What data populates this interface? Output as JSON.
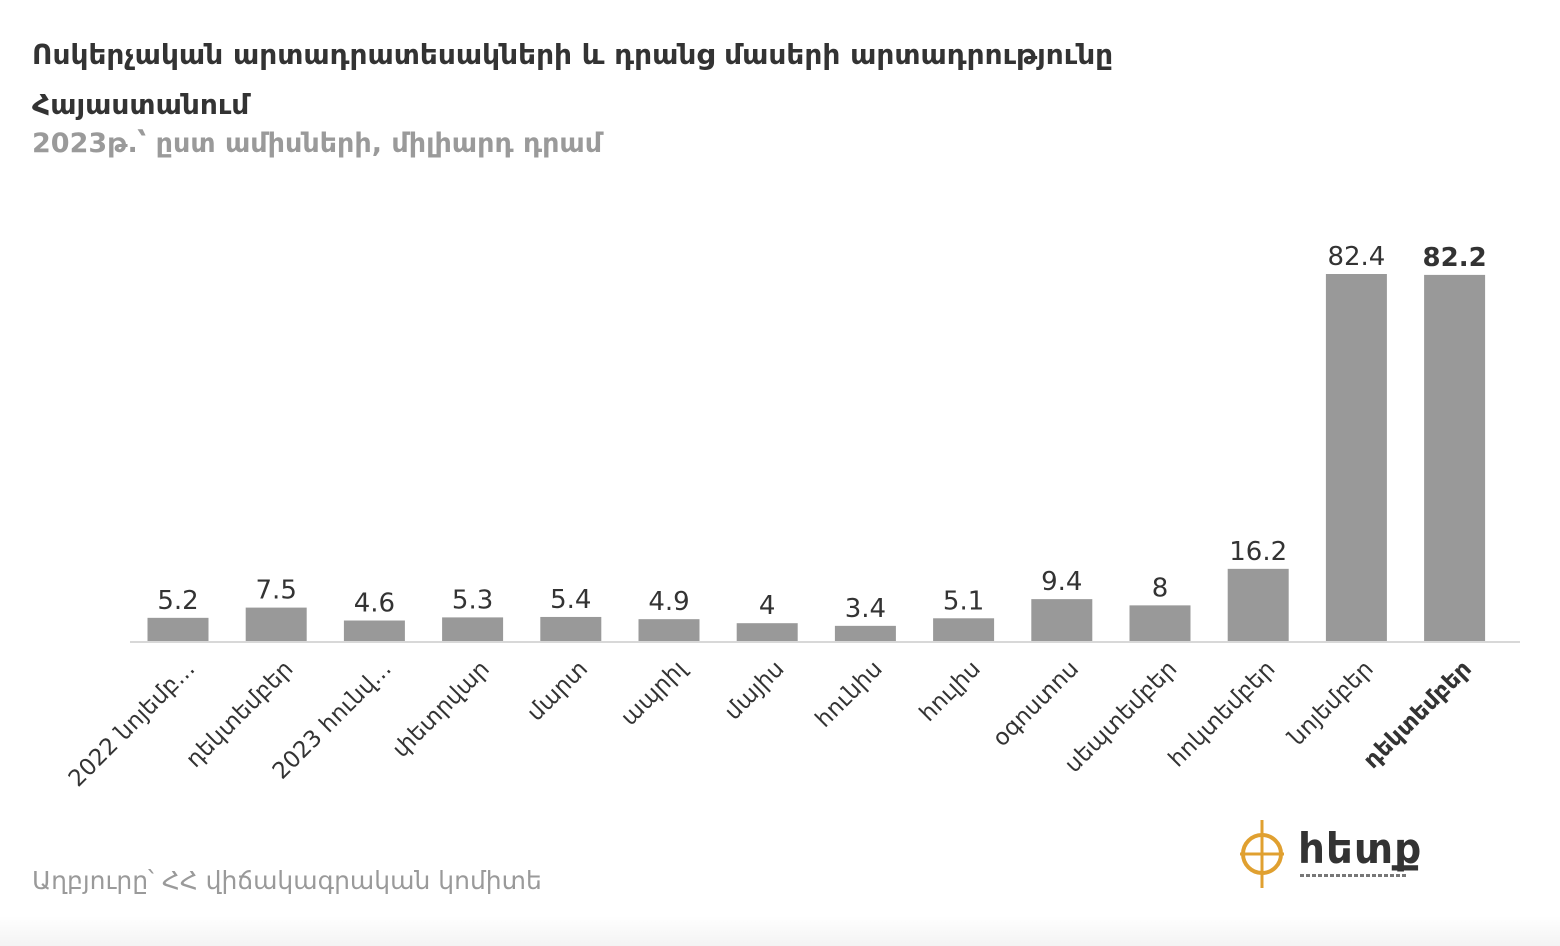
{
  "title": "Ոսկերչական արտադրատեսակների և դրանց մասերի արտադրությունը Հայաստանում",
  "subtitle": "2023թ.՝ ըստ ամիսների, միլիարդ դրամ",
  "source": "Աղբյուրը՝ ՀՀ վիճակագրական կոմիտե",
  "logo": {
    "text": "հետք",
    "icon": "target-crosshair-icon"
  },
  "colors": {
    "bar": "#999999",
    "text": "#333333",
    "muted": "#9a9a9a",
    "axis": "#cccccc",
    "logo_accent": "#e0a030"
  },
  "chart_data": {
    "type": "bar",
    "categories": [
      "2022 նոյեմբ...",
      "դեկտեմբեր",
      "2023 հունվ...",
      "փետրվար",
      "մարտ",
      "ապրիլ",
      "մայիս",
      "հունիս",
      "հուլիս",
      "օգոստոս",
      "սեպտեմբեր",
      "հոկտեմբեր",
      "նոյեմբեր",
      "դեկտեմբեր"
    ],
    "values": [
      5.2,
      7.5,
      4.6,
      5.3,
      5.4,
      4.9,
      4,
      3.4,
      5.1,
      9.4,
      8,
      16.2,
      82.4,
      82.2
    ],
    "data_labels": [
      "5.2",
      "7.5",
      "4.6",
      "5.3",
      "5.4",
      "4.9",
      "4",
      "3.4",
      "5.1",
      "9.4",
      "8",
      "16.2",
      "82.4",
      "82.2"
    ],
    "highlighted_index": 13,
    "ylim": [
      0,
      82.4
    ],
    "grid": false,
    "legend": "none"
  }
}
